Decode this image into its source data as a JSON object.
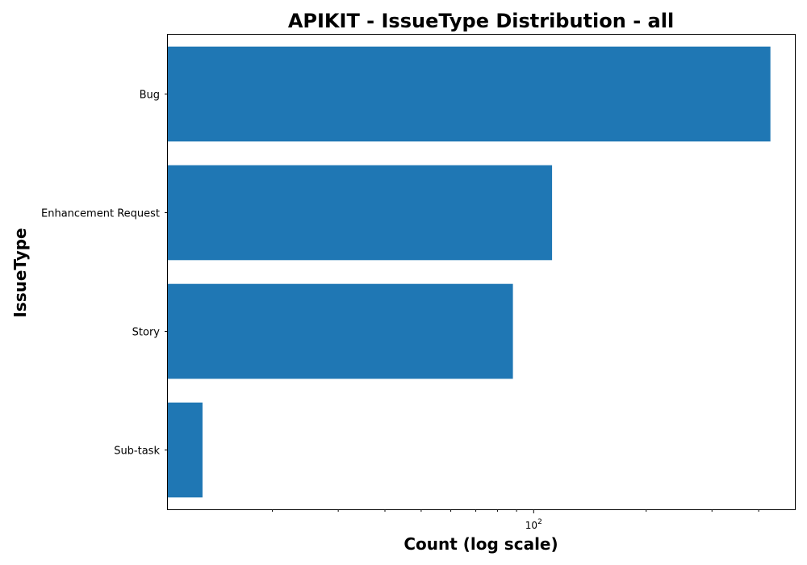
{
  "chart_data": {
    "type": "bar",
    "orientation": "horizontal",
    "title": "APIKIT - IssueType Distribution - all",
    "xlabel": "Count (log scale)",
    "ylabel": "IssueType",
    "x_scale": "log",
    "xlim": [
      10.5,
      500
    ],
    "categories": [
      "Bug",
      "Enhancement Request",
      "Story",
      "Sub-task"
    ],
    "values": [
      430,
      112,
      88,
      13
    ],
    "x_ticks": [
      {
        "value": 100,
        "base": "10",
        "exponent": "2"
      }
    ],
    "bar_color": "#1f77b4",
    "grid": false,
    "legend": "none"
  }
}
